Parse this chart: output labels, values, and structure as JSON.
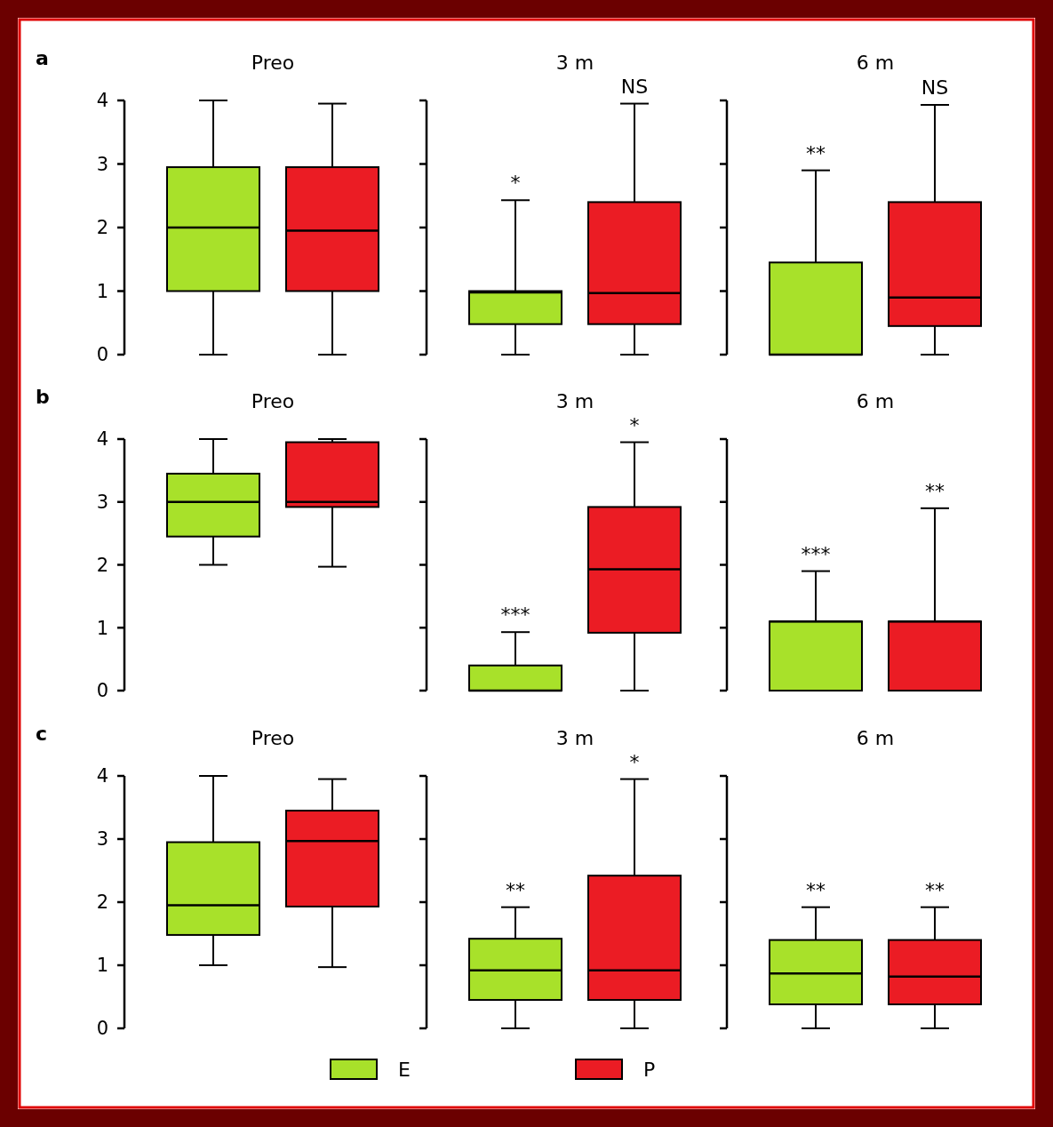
{
  "chart_data": [
    {
      "type": "box",
      "annotations": [
        "a",
        "*",
        "NS",
        "**",
        "NS"
      ],
      "categories": [
        "Preo",
        "3 m",
        "6 m"
      ],
      "series": [
        {
          "color": "#a8e12a",
          "boxes": [
            {
              "low": 0,
              "q1": 1,
              "median": 2,
              "q3": 2.95,
              "high": 4
            },
            {
              "low": 0,
              "q1": 0.48,
              "median": 0.98,
              "q3": 1,
              "high": 2.43
            },
            {
              "low": 0,
              "q1": 0,
              "median": 0,
              "q3": 1.45,
              "high": 2.9
            }
          ]
        },
        {
          "color": "#eb1c24",
          "boxes": [
            {
              "low": 0,
              "q1": 1,
              "median": 1.95,
              "q3": 2.95,
              "high": 3.95
            },
            {
              "low": 0,
              "q1": 0.48,
              "median": 0.97,
              "q3": 2.4,
              "high": 3.95
            },
            {
              "low": 0,
              "q1": 0.45,
              "median": 0.9,
              "q3": 2.4,
              "high": 3.93
            }
          ]
        }
      ],
      "ylim": [
        0,
        4
      ],
      "yticks": [
        0,
        1,
        2,
        3,
        4
      ]
    },
    {
      "type": "box",
      "annotations": [
        "b",
        "***",
        "*",
        "***",
        "**"
      ],
      "categories": [
        "Preo",
        "3 m",
        "6 m"
      ],
      "series": [
        {
          "color": "#a8e12a",
          "boxes": [
            {
              "low": 2,
              "q1": 2.45,
              "median": 3,
              "q3": 3.45,
              "high": 4
            },
            {
              "low": 0,
              "q1": 0,
              "median": 0,
              "q3": 0.4,
              "high": 0.93
            },
            {
              "low": 0,
              "q1": 0,
              "median": 1.1,
              "q3": 1.1,
              "high": 1.9
            }
          ]
        },
        {
          "color": "#eb1c24",
          "boxes": [
            {
              "low": 1.97,
              "q1": 2.92,
              "median": 3,
              "q3": 3.95,
              "high": 4
            },
            {
              "low": 0,
              "q1": 0.92,
              "median": 1.93,
              "q3": 2.92,
              "high": 3.95
            },
            {
              "low": 0,
              "q1": 0,
              "median": 1.1,
              "q3": 1.1,
              "high": 2.9
            }
          ]
        }
      ],
      "ylim": [
        0,
        4
      ],
      "yticks": [
        0,
        1,
        2,
        3,
        4
      ]
    },
    {
      "type": "box",
      "annotations": [
        "c",
        "**",
        "*",
        "**",
        "**"
      ],
      "categories": [
        "Preo",
        "3 m",
        "6 m"
      ],
      "series": [
        {
          "name": "E",
          "color": "#a8e12a",
          "boxes": [
            {
              "low": 1,
              "q1": 1.48,
              "median": 1.95,
              "q3": 2.95,
              "high": 4
            },
            {
              "low": 0,
              "q1": 0.45,
              "median": 0.92,
              "q3": 1.42,
              "high": 1.92
            },
            {
              "low": 0,
              "q1": 0.38,
              "median": 0.87,
              "q3": 1.4,
              "high": 1.92
            }
          ]
        },
        {
          "name": "P",
          "color": "#eb1c24",
          "boxes": [
            {
              "low": 0.97,
              "q1": 1.93,
              "median": 2.97,
              "q3": 3.45,
              "high": 3.95
            },
            {
              "low": 0,
              "q1": 0.45,
              "median": 0.92,
              "q3": 2.42,
              "high": 3.95
            },
            {
              "low": 0,
              "q1": 0.38,
              "median": 0.82,
              "q3": 1.4,
              "high": 1.92
            }
          ]
        }
      ],
      "ylim": [
        0,
        4
      ],
      "yticks": [
        0,
        1,
        2,
        3,
        4
      ],
      "legend": "bottom"
    }
  ]
}
